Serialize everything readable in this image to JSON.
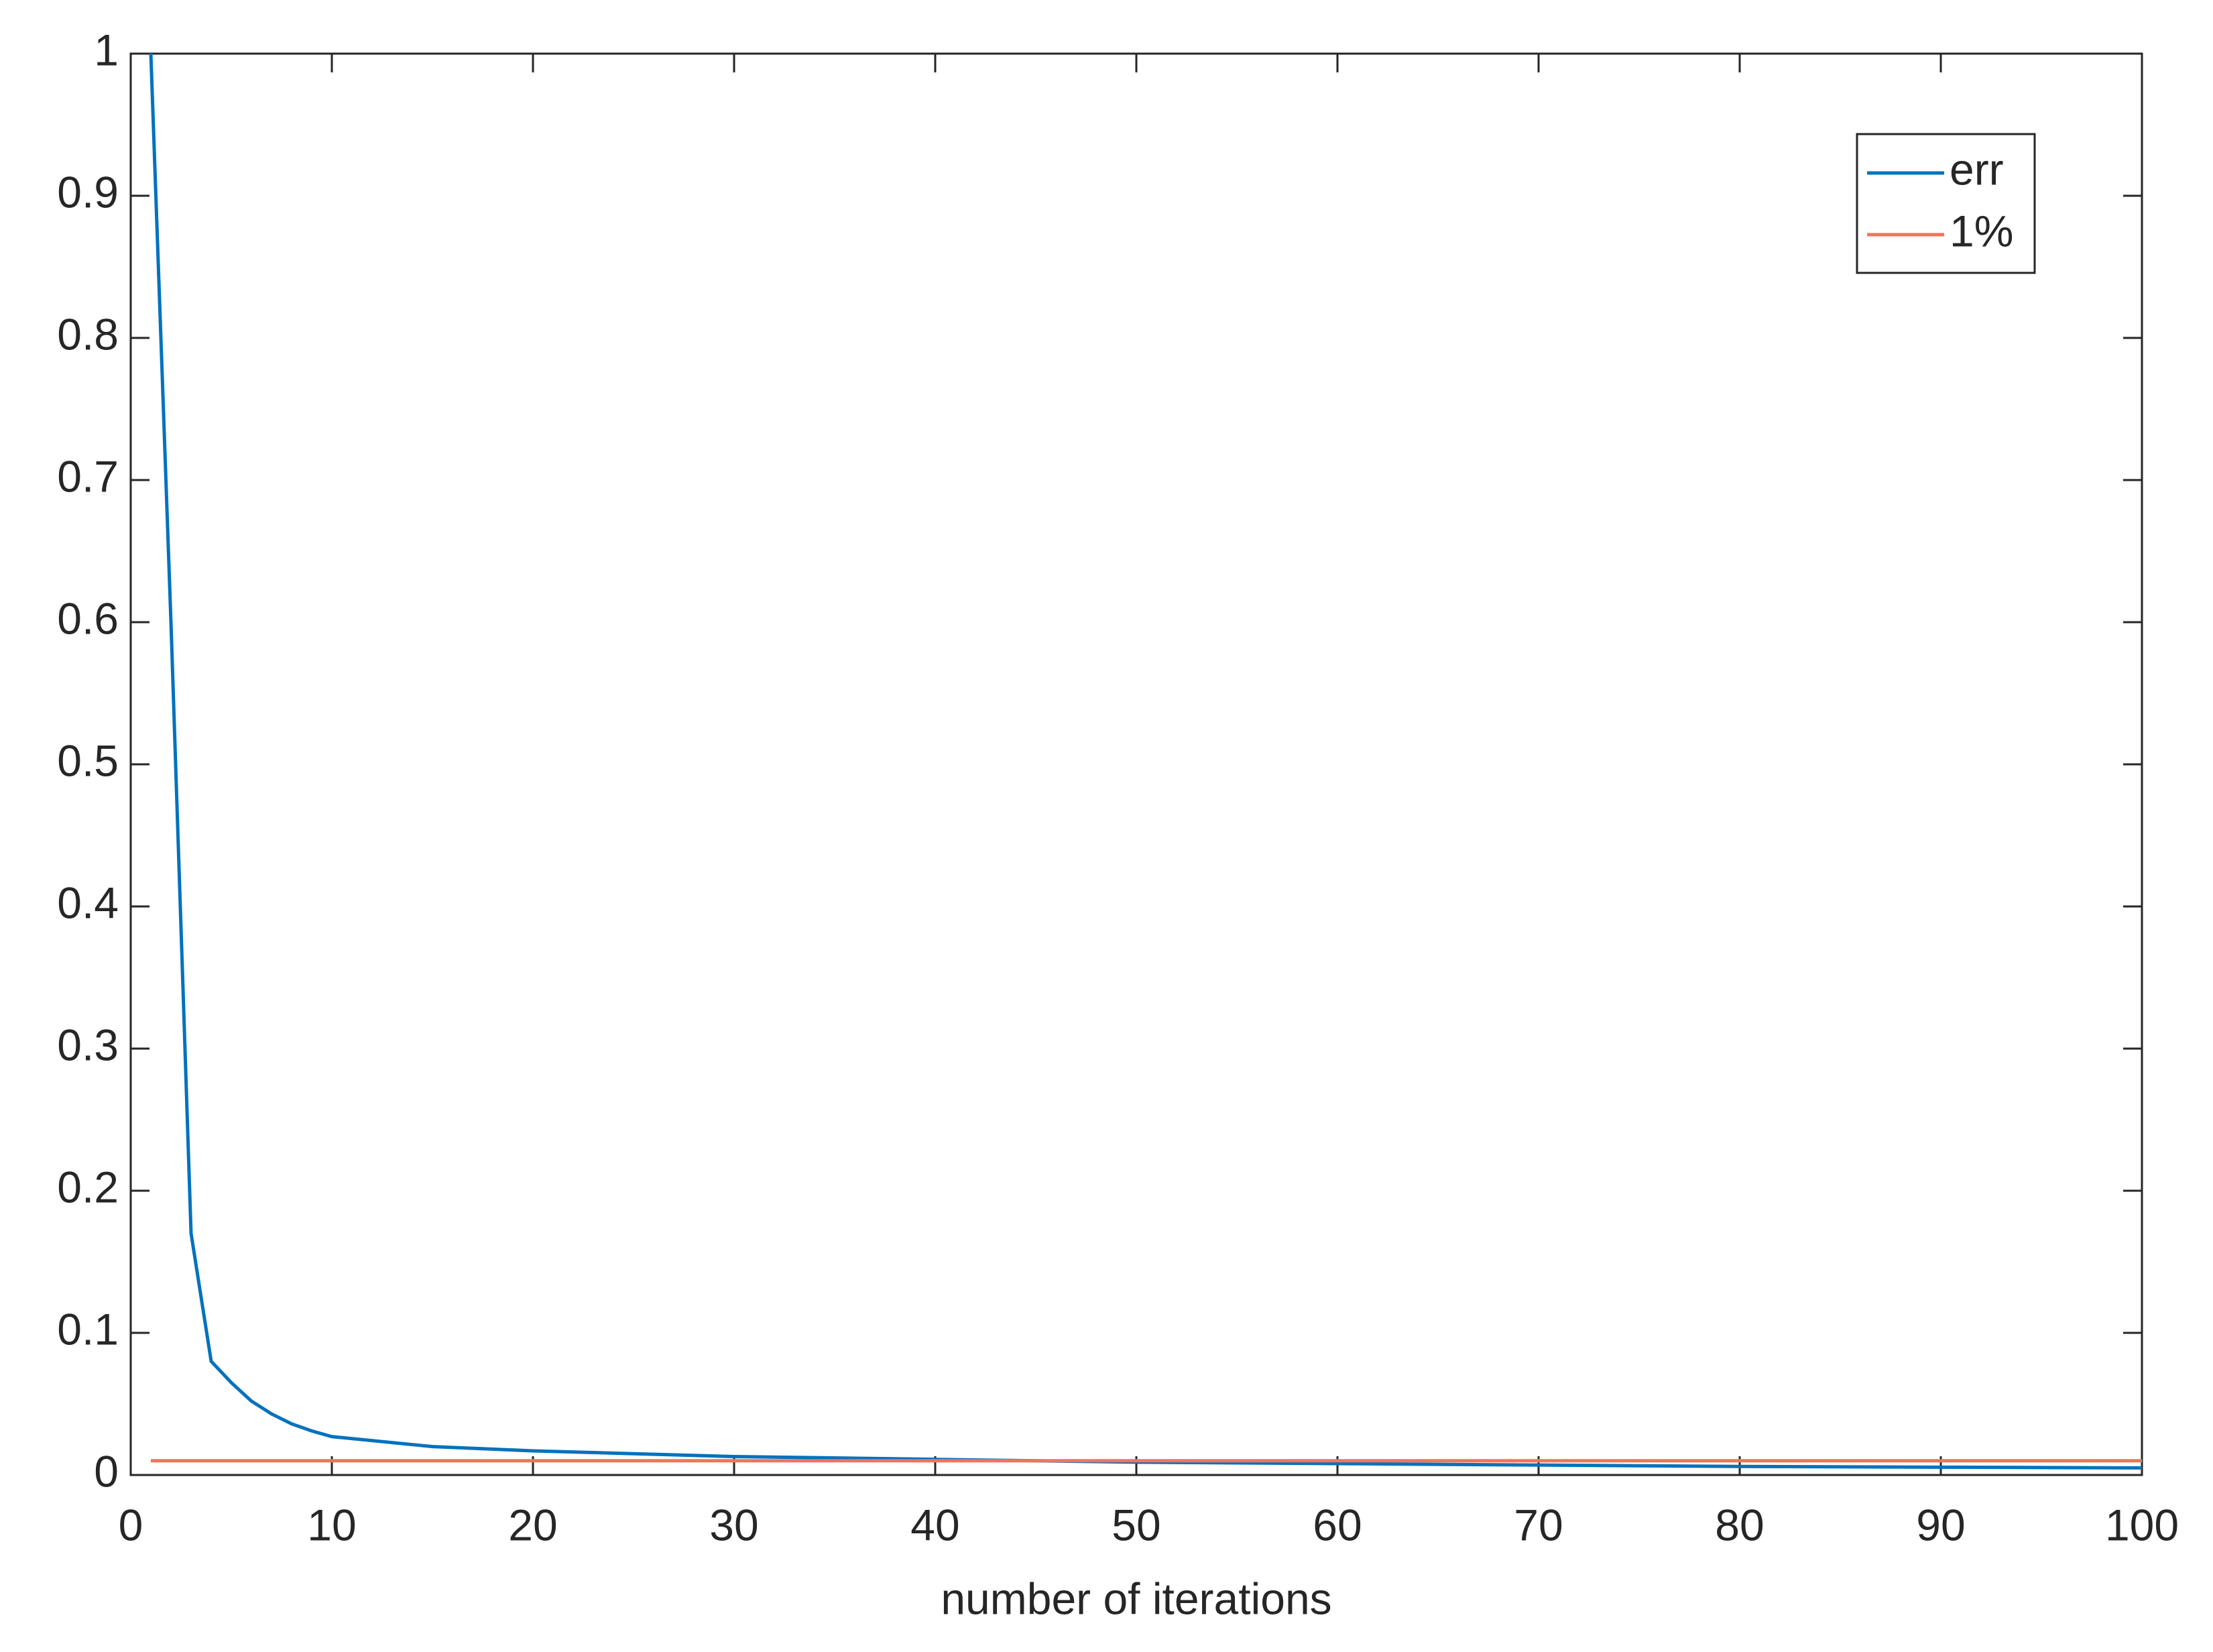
{
  "chart_data": {
    "type": "line",
    "xlabel": "number of iterations",
    "x": [
      1,
      2,
      3,
      4,
      5,
      6,
      7,
      8,
      9,
      10,
      15,
      20,
      25,
      30,
      40,
      50,
      60,
      70,
      80,
      90,
      100
    ],
    "series": [
      {
        "name": "err",
        "color": "#0072bd",
        "values": [
          1,
          0.6,
          0.17,
          0.08,
          0.065,
          0.052,
          0.043,
          0.036,
          0.031,
          0.027,
          0.02,
          0.017,
          0.015,
          0.013,
          0.011,
          0.009,
          0.008,
          0.007,
          0.006,
          0.0055,
          0.005
        ]
      },
      {
        "name": "1%",
        "color": "#f0755a",
        "values": [
          0.01,
          0.01,
          0.01,
          0.01,
          0.01,
          0.01,
          0.01,
          0.01,
          0.01,
          0.01,
          0.01,
          0.01,
          0.01,
          0.01,
          0.01,
          0.01,
          0.01,
          0.01,
          0.01,
          0.01,
          0.01
        ]
      }
    ],
    "xlim": [
      0,
      100
    ],
    "xticks": [
      0,
      10,
      20,
      30,
      40,
      50,
      60,
      70,
      80,
      90,
      100
    ],
    "ylim": [
      0,
      1
    ],
    "yticks": [
      0,
      0.1,
      0.2,
      0.3,
      0.4,
      0.5,
      0.6,
      0.7,
      0.8,
      0.9,
      1
    ],
    "grid": false,
    "legend": "top-right"
  }
}
